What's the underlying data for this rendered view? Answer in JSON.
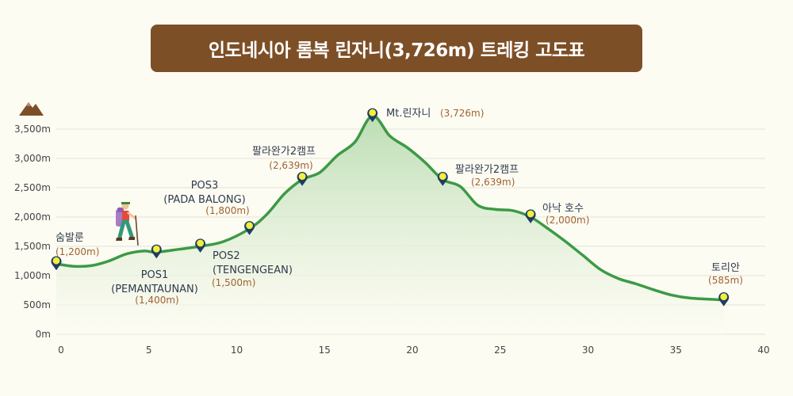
{
  "title": "인도네시아 롬복 린자니(3,726m) 트레킹 고도표",
  "chart_data": {
    "type": "area",
    "title": "인도네시아 롬복 린자니(3,726m) 트레킹 고도표",
    "xlabel": "",
    "ylabel": "",
    "xlim": [
      0,
      40
    ],
    "ylim": [
      0,
      3500
    ],
    "x_ticks": [
      "0",
      "5",
      "10",
      "15",
      "20",
      "25",
      "30",
      "35",
      "40"
    ],
    "y_ticks": [
      "0m",
      "500m",
      "1,000m",
      "1,500m",
      "2,000m",
      "2,500m",
      "3,000m",
      "3,500m"
    ],
    "grid": true,
    "profile": {
      "x": [
        0,
        1,
        2,
        3,
        4,
        5,
        5.7,
        7,
        8.2,
        9.5,
        11,
        12,
        13,
        14,
        15,
        16,
        17,
        18,
        19,
        20,
        21,
        22,
        23,
        24,
        25,
        26,
        27,
        28,
        29,
        30,
        31,
        32,
        33,
        34,
        35,
        36,
        37,
        38
      ],
      "y": [
        1200,
        1160,
        1170,
        1250,
        1370,
        1420,
        1400,
        1450,
        1500,
        1580,
        1800,
        2050,
        2400,
        2639,
        2760,
        3050,
        3280,
        3726,
        3380,
        3180,
        2930,
        2639,
        2520,
        2200,
        2130,
        2110,
        2000,
        1800,
        1580,
        1340,
        1100,
        950,
        860,
        760,
        670,
        620,
        600,
        585
      ]
    },
    "waypoints": [
      {
        "name": "숨발룬",
        "elev_label": "(1,200m)",
        "x": 0,
        "y": 1200
      },
      {
        "name": "POS1\n(PEMANTAUNAN)",
        "elev_label": "(1,400m)",
        "x": 5.7,
        "y": 1400
      },
      {
        "name": "POS2\n(TENGENGEAN)",
        "elev_label": "(1,500m)",
        "x": 8.2,
        "y": 1500
      },
      {
        "name": "POS3\n(PADA BALONG)",
        "elev_label": "(1,800m)",
        "x": 11,
        "y": 1800
      },
      {
        "name": "팔라완가2캠프",
        "elev_label": "(2,639m)",
        "x": 14,
        "y": 2639
      },
      {
        "name": "Mt.린자니",
        "elev_label": "(3,726m)",
        "x": 18,
        "y": 3726
      },
      {
        "name": "팔라완가2캠프",
        "elev_label": "(2,639m)",
        "x": 22,
        "y": 2639
      },
      {
        "name": "아낙 호수",
        "elev_label": "(2,000m)",
        "x": 27,
        "y": 2000
      },
      {
        "name": "토리안",
        "elev_label": "(585m)",
        "x": 38,
        "y": 585
      }
    ],
    "colors": {
      "line": "#3c9a46",
      "fill_top": "#b9dcb1",
      "fill_bottom": "#fdfcf3",
      "marker_fill": "#f3ef3a",
      "marker_stroke": "#1e3d63",
      "title_bg": "#7d4f27",
      "elev_text": "#a0622f",
      "name_text": "#2e3a4c"
    },
    "icons": [
      "mountain-icon",
      "hiker-icon"
    ]
  }
}
